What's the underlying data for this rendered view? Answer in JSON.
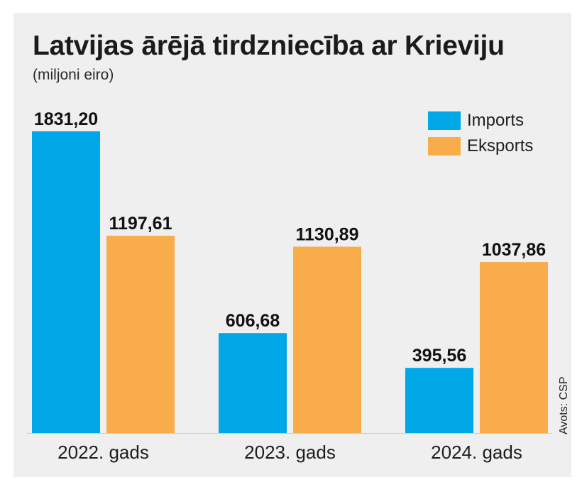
{
  "chart_data": {
    "type": "bar",
    "title": "Latvijas ārējā tirdzniecība ar Krieviju",
    "subtitle": "(miljoni eiro)",
    "categories": [
      "2022. gads",
      "2023. gads",
      "2024. gads"
    ],
    "series": [
      {
        "name": "Imports",
        "color": "#00a8e8",
        "values": [
          1831.2,
          606.68,
          395.56
        ],
        "labels": [
          "1831,20",
          "606,68",
          "395,56"
        ]
      },
      {
        "name": "Eksports",
        "color": "#f8ad4a",
        "values": [
          1197.61,
          1130.89,
          1037.86
        ],
        "labels": [
          "1197,61",
          "1130,89",
          "1037,86"
        ]
      }
    ],
    "ylim": [
      0,
      1831.2
    ],
    "grid": false,
    "legend": "top-right",
    "source": "Avots: CSP"
  }
}
